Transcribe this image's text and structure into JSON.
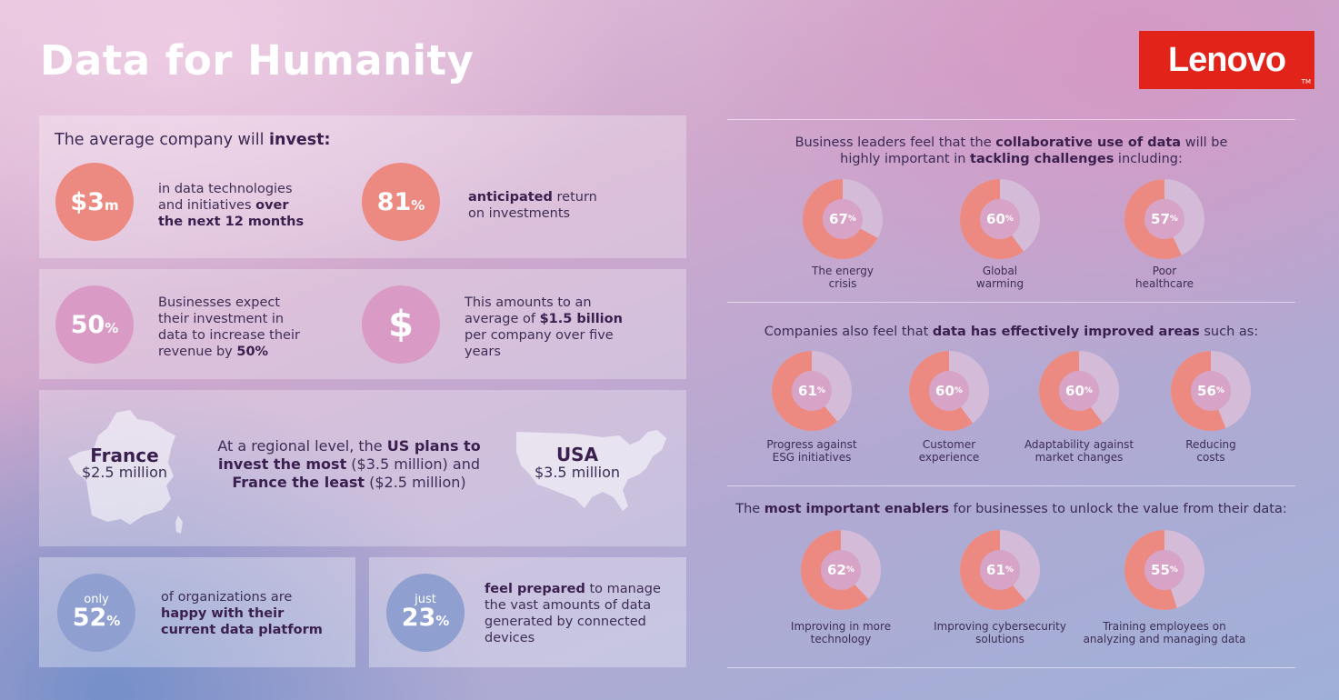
{
  "title": "Data for Humanity",
  "logo": "Lenovo",
  "colors": {
    "coral": "#ec8a82",
    "donut_track": "#d4bcd9",
    "logo_red": "#e2231a"
  },
  "left": {
    "invest_heading_pre": "The average company will ",
    "invest_heading_bold": "invest:",
    "stat1": {
      "value": "$3",
      "unit": "m",
      "text_pre": "in data technologies and initiatives ",
      "text_bold": "over the next 12 months"
    },
    "stat2": {
      "value": "81",
      "unit": "%",
      "text_bold": "anticipated",
      "text_post": " return on investments"
    },
    "stat3": {
      "value": "50",
      "unit": "%",
      "text_pre": "Businesses expect their investment in data to increase their revenue by ",
      "text_bold": "50%"
    },
    "stat4": {
      "symbol": "$",
      "text_pre": "This amounts to an average of ",
      "text_bold": "$1.5 billion",
      "text_post": " per company over five years"
    },
    "region": {
      "france_name": "France",
      "france_value": "$2.5 million",
      "usa_name": "USA",
      "usa_value": "$3.5 million",
      "text_pre": "At a regional level, the ",
      "text_bold1": "US plans to invest the most",
      "text_mid": " ($3.5 million) and ",
      "text_bold2": "France the least",
      "text_post": " ($2.5 million)"
    },
    "stat5": {
      "prefix": "only",
      "value": "52",
      "unit": "%",
      "text_pre": "of organizations are ",
      "text_bold": "happy with their current data platform"
    },
    "stat6": {
      "prefix": "just",
      "value": "23",
      "unit": "%",
      "text_bold": "feel prepared",
      "text_post": " to manage the vast amounts of data generated by connected devices"
    }
  },
  "right": {
    "section1": {
      "pre": "Business leaders feel that the ",
      "b1": "collaborative use of data",
      "mid": " will be highly important in ",
      "b2": "tackling challenges",
      "post": " including:",
      "items": [
        {
          "value": 67,
          "label": "67",
          "caption1": "The energy",
          "caption2": "crisis"
        },
        {
          "value": 60,
          "label": "60",
          "caption1": "Global",
          "caption2": "warming"
        },
        {
          "value": 57,
          "label": "57",
          "caption1": "Poor",
          "caption2": "healthcare"
        }
      ]
    },
    "section2": {
      "pre": "Companies also feel that ",
      "b1": "data has effectively improved areas",
      "post": " such as:",
      "items": [
        {
          "value": 61,
          "label": "61",
          "caption1": "Progress against",
          "caption2": "ESG initiatives"
        },
        {
          "value": 60,
          "label": "60",
          "caption1": "Customer",
          "caption2": "experience"
        },
        {
          "value": 60,
          "label": "60",
          "caption1": "Adaptability against",
          "caption2": "market changes"
        },
        {
          "value": 56,
          "label": "56",
          "caption1": "Reducing",
          "caption2": "costs"
        }
      ]
    },
    "section3": {
      "pre": "The ",
      "b1": "most important enablers",
      "post": " for businesses to unlock the value from their data:",
      "items": [
        {
          "value": 62,
          "label": "62",
          "caption1": "Improving in more",
          "caption2": "technology"
        },
        {
          "value": 61,
          "label": "61",
          "caption1": "Improving cybersecurity",
          "caption2": "solutions"
        },
        {
          "value": 55,
          "label": "55",
          "caption1": "Training employees on",
          "caption2": "analyzing and managing data"
        }
      ]
    },
    "percent_sign": "%"
  }
}
